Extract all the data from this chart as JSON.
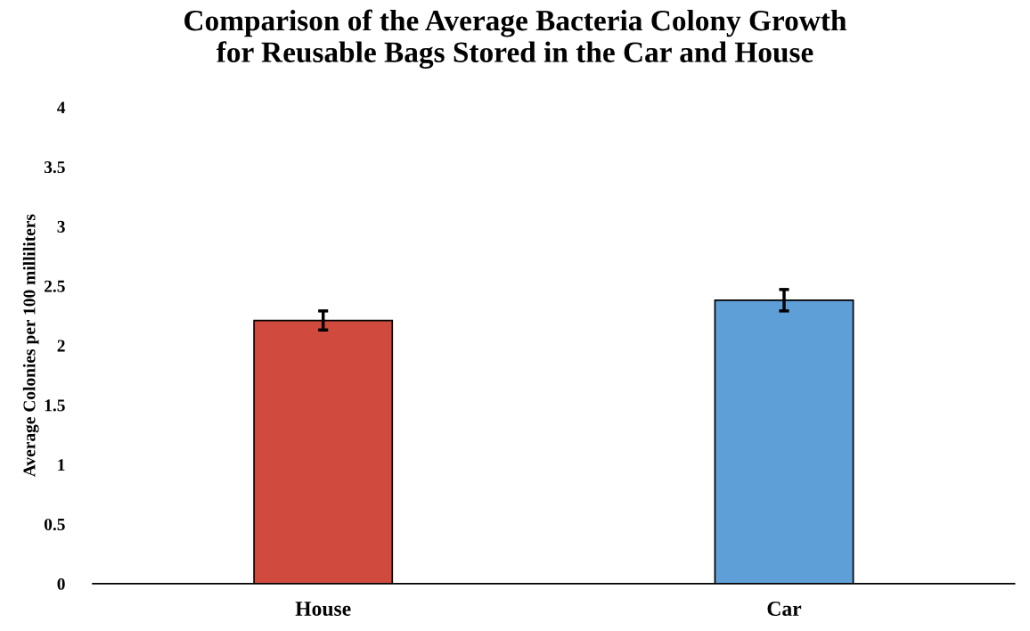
{
  "chart_data": {
    "type": "bar",
    "title": "Comparison of the Average Bacteria Colony Growth\nfor Reusable Bags Stored in the Car and House",
    "ylabel": "Average Colonies per 100 milliliters",
    "categories": [
      "House",
      "Car"
    ],
    "values": [
      2.21,
      2.38
    ],
    "errors": [
      0.08,
      0.09
    ],
    "colors": [
      "#d04a3e",
      "#5f9fd8"
    ],
    "ylim": [
      0,
      4
    ],
    "yticks": [
      0,
      0.5,
      1,
      1.5,
      2,
      2.5,
      3,
      3.5,
      4
    ],
    "grid": false
  }
}
